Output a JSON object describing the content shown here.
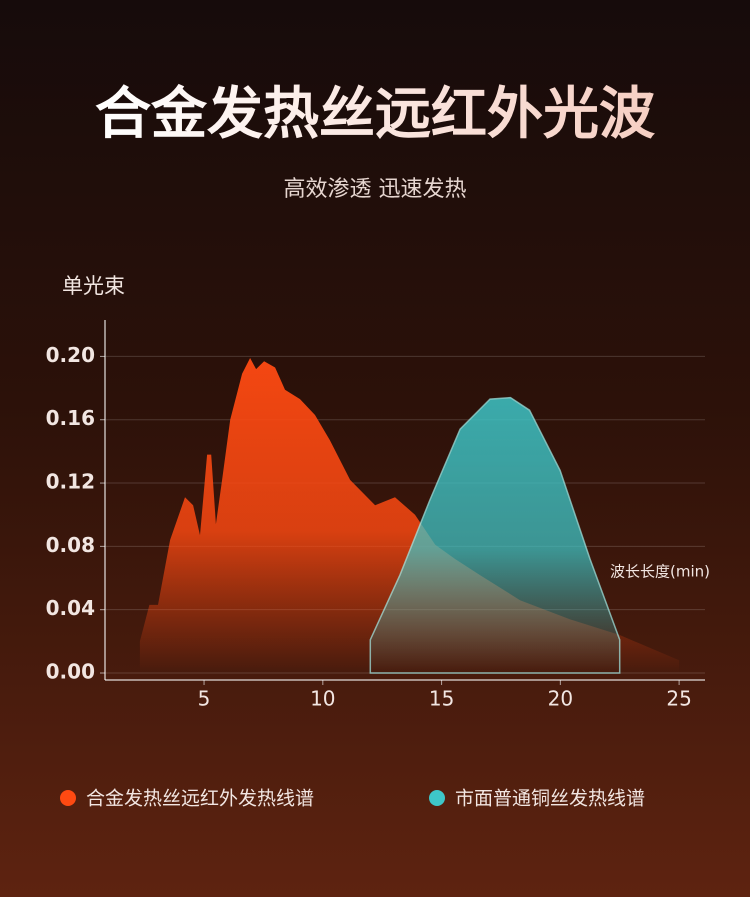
{
  "chart_data": {
    "type": "area",
    "title": "合金发热丝远红外光波",
    "subtitle": "高效渗透 迅速发热",
    "y_label": "单光束",
    "x_label": "波长长度(min)",
    "xlim": [
      0.83,
      26.09
    ],
    "ylim": [
      0,
      0.223
    ],
    "xticks": [
      5,
      10,
      15,
      20,
      25
    ],
    "yticks": [
      {
        "value": 0,
        "label": "0.00"
      },
      {
        "value": 0.04,
        "label": "0.04"
      },
      {
        "value": 0.08,
        "label": "0.08"
      },
      {
        "value": 0.12,
        "label": "0.12"
      },
      {
        "value": 0.16,
        "label": "0.16"
      },
      {
        "value": 0.2,
        "label": "0.20"
      }
    ],
    "grid": true,
    "legend": "bottom",
    "series": [
      {
        "name": "合金发热丝远红外发热线谱",
        "color": "#ff4a12",
        "x": [
          2.3,
          2.7,
          3.06,
          3.57,
          4.2,
          4.54,
          4.83,
          5.13,
          5.3,
          5.5,
          5.76,
          6.1,
          6.6,
          6.94,
          7.19,
          7.53,
          7.99,
          8.41,
          9.04,
          9.67,
          10.3,
          11.15,
          12.2,
          13.04,
          13.88,
          14.73,
          15.57,
          16.6,
          18.3,
          20.4,
          22.5,
          25.0
        ],
        "values": [
          0.02,
          0.043,
          0.043,
          0.084,
          0.111,
          0.106,
          0.087,
          0.138,
          0.138,
          0.094,
          0.122,
          0.16,
          0.189,
          0.199,
          0.192,
          0.197,
          0.193,
          0.179,
          0.173,
          0.163,
          0.147,
          0.122,
          0.106,
          0.111,
          0.1,
          0.081,
          0.072,
          0.062,
          0.046,
          0.034,
          0.024,
          0.008
        ]
      },
      {
        "name": "市面普通铜丝发热线谱",
        "color": "#3ec6c8",
        "x": [
          12.0,
          13.25,
          14.5,
          15.78,
          17.04,
          17.9,
          18.7,
          19.99,
          21.25,
          22.5
        ],
        "values": [
          0.021,
          0.062,
          0.109,
          0.154,
          0.173,
          0.174,
          0.166,
          0.128,
          0.072,
          0.021
        ]
      }
    ]
  }
}
